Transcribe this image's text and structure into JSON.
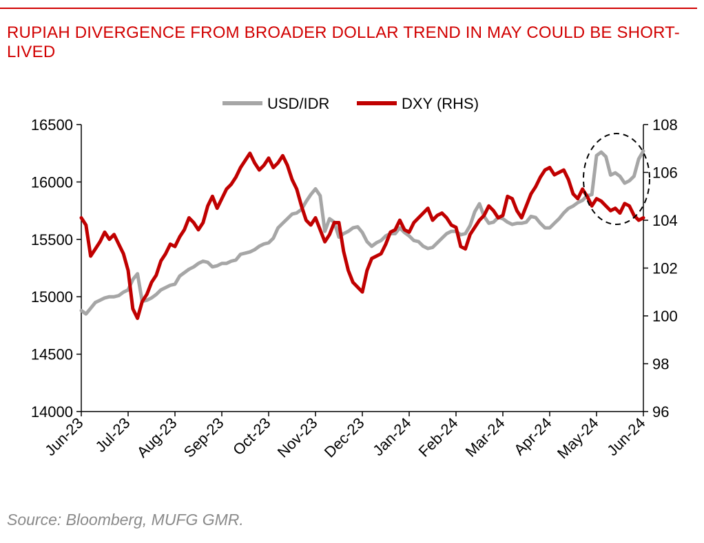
{
  "title": "RUPIAH DIVERGENCE FROM BROADER DOLLAR TREND IN MAY COULD BE SHORT-LIVED",
  "source": "Source: Bloomberg, MUFG GMR.",
  "colors": {
    "accent": "#d10000",
    "usd_idr": "#a6a6a6",
    "dxy": "#c00000"
  },
  "chart_data": {
    "type": "line",
    "legend_position": "top-center",
    "grid": false,
    "x_ticks": [
      "Jun-23",
      "Jul-23",
      "Aug-23",
      "Sep-23",
      "Oct-23",
      "Nov-23",
      "Dec-23",
      "Jan-24",
      "Feb-24",
      "Mar-24",
      "Apr-24",
      "May-24",
      "Jun-24"
    ],
    "y_left": {
      "min": 14000,
      "max": 16500,
      "ticks": [
        "14000",
        "14500",
        "15000",
        "15500",
        "16000",
        "16500"
      ]
    },
    "y_right": {
      "min": 96,
      "max": 108,
      "ticks": [
        "96",
        "98",
        "100",
        "102",
        "104",
        "106",
        "108"
      ]
    },
    "annotation": "dashed ellipse highlighting May-24 divergence",
    "series": [
      {
        "name": "USD/IDR",
        "axis": "left",
        "color": "#a6a6a6",
        "x": [
          0,
          0.1,
          0.2,
          0.3,
          0.4,
          0.5,
          0.6,
          0.7,
          0.8,
          0.9,
          1.0,
          1.1,
          1.2,
          1.3,
          1.4,
          1.5,
          1.6,
          1.7,
          1.8,
          1.9,
          2.0,
          2.1,
          2.2,
          2.3,
          2.4,
          2.5,
          2.6,
          2.7,
          2.8,
          2.9,
          3.0,
          3.1,
          3.2,
          3.3,
          3.4,
          3.5,
          3.6,
          3.7,
          3.8,
          3.9,
          4.0,
          4.1,
          4.2,
          4.3,
          4.4,
          4.5,
          4.6,
          4.7,
          4.8,
          4.9,
          5.0,
          5.1,
          5.2,
          5.3,
          5.4,
          5.5,
          5.6,
          5.7,
          5.8,
          5.9,
          6.0,
          6.1,
          6.2,
          6.3,
          6.4,
          6.5,
          6.6,
          6.7,
          6.8,
          6.9,
          7.0,
          7.1,
          7.2,
          7.3,
          7.4,
          7.5,
          7.6,
          7.7,
          7.8,
          7.9,
          8.0,
          8.1,
          8.2,
          8.3,
          8.4,
          8.5,
          8.6,
          8.7,
          8.8,
          8.9,
          9.0,
          9.1,
          9.2,
          9.3,
          9.4,
          9.5,
          9.6,
          9.7,
          9.8,
          9.9,
          10.0,
          10.1,
          10.2,
          10.3,
          10.4,
          10.5,
          10.6,
          10.7,
          10.8,
          10.9,
          11.0,
          11.1,
          11.2,
          11.3,
          11.4,
          11.5,
          11.6,
          11.7,
          11.8,
          11.9,
          12.0
        ],
        "values": [
          14880,
          14850,
          14900,
          14950,
          14970,
          14990,
          15000,
          15000,
          15010,
          15040,
          15060,
          15150,
          15200,
          14960,
          14970,
          14990,
          15020,
          15060,
          15080,
          15100,
          15110,
          15180,
          15210,
          15240,
          15260,
          15290,
          15310,
          15300,
          15260,
          15270,
          15290,
          15290,
          15310,
          15320,
          15370,
          15380,
          15390,
          15410,
          15440,
          15460,
          15470,
          15510,
          15600,
          15640,
          15680,
          15720,
          15730,
          15760,
          15830,
          15890,
          15940,
          15880,
          15570,
          15680,
          15650,
          15520,
          15550,
          15570,
          15600,
          15610,
          15560,
          15480,
          15440,
          15470,
          15490,
          15530,
          15550,
          15550,
          15600,
          15560,
          15530,
          15490,
          15480,
          15440,
          15420,
          15430,
          15470,
          15510,
          15550,
          15570,
          15570,
          15540,
          15550,
          15620,
          15740,
          15810,
          15700,
          15640,
          15650,
          15690,
          15680,
          15650,
          15630,
          15640,
          15640,
          15650,
          15700,
          15690,
          15640,
          15600,
          15600,
          15640,
          15680,
          15730,
          15770,
          15790,
          15820,
          15840,
          15880,
          15890,
          16230,
          16260,
          16220,
          16060,
          16080,
          16050,
          15990,
          16010,
          16050,
          16200,
          16270
        ]
      },
      {
        "name": "DXY (RHS)",
        "axis": "right",
        "color": "#c00000",
        "x": [
          0,
          0.1,
          0.2,
          0.3,
          0.4,
          0.5,
          0.6,
          0.7,
          0.8,
          0.9,
          1.0,
          1.1,
          1.2,
          1.3,
          1.4,
          1.5,
          1.6,
          1.7,
          1.8,
          1.9,
          2.0,
          2.1,
          2.2,
          2.3,
          2.4,
          2.5,
          2.6,
          2.7,
          2.8,
          2.9,
          3.0,
          3.1,
          3.2,
          3.3,
          3.4,
          3.5,
          3.6,
          3.7,
          3.8,
          3.9,
          4.0,
          4.1,
          4.2,
          4.3,
          4.4,
          4.5,
          4.6,
          4.7,
          4.8,
          4.9,
          5.0,
          5.1,
          5.2,
          5.3,
          5.4,
          5.5,
          5.6,
          5.7,
          5.8,
          5.9,
          6.0,
          6.1,
          6.2,
          6.3,
          6.4,
          6.5,
          6.6,
          6.7,
          6.8,
          6.9,
          7.0,
          7.1,
          7.2,
          7.3,
          7.4,
          7.5,
          7.6,
          7.7,
          7.8,
          7.9,
          8.0,
          8.1,
          8.2,
          8.3,
          8.4,
          8.5,
          8.6,
          8.7,
          8.8,
          8.9,
          9.0,
          9.1,
          9.2,
          9.3,
          9.4,
          9.5,
          9.6,
          9.7,
          9.8,
          9.9,
          10.0,
          10.1,
          10.2,
          10.3,
          10.4,
          10.5,
          10.6,
          10.7,
          10.8,
          10.9,
          11.0,
          11.1,
          11.2,
          11.3,
          11.4,
          11.5,
          11.6,
          11.7,
          11.8,
          11.9,
          12.0
        ],
        "values": [
          104.1,
          103.8,
          102.5,
          102.8,
          103.1,
          103.5,
          103.2,
          103.4,
          103.0,
          102.6,
          101.9,
          100.3,
          99.9,
          100.6,
          100.9,
          101.4,
          101.7,
          102.3,
          102.6,
          103.0,
          102.9,
          103.3,
          103.6,
          104.1,
          103.9,
          103.6,
          103.9,
          104.6,
          105.0,
          104.5,
          104.9,
          105.3,
          105.5,
          105.8,
          106.2,
          106.5,
          106.8,
          106.4,
          106.1,
          106.3,
          106.6,
          106.2,
          106.4,
          106.7,
          106.3,
          105.7,
          105.3,
          104.6,
          104.0,
          103.8,
          104.1,
          103.6,
          103.1,
          103.4,
          103.9,
          103.9,
          102.7,
          101.9,
          101.4,
          101.2,
          101.0,
          101.9,
          102.4,
          102.5,
          102.6,
          103.0,
          103.5,
          103.6,
          104.0,
          103.6,
          103.5,
          103.9,
          104.1,
          104.3,
          104.5,
          104.0,
          104.2,
          104.3,
          104.1,
          103.8,
          103.7,
          102.9,
          102.8,
          103.4,
          103.7,
          104.0,
          104.2,
          104.6,
          104.4,
          104.1,
          104.2,
          105.0,
          104.9,
          104.4,
          104.1,
          104.6,
          105.1,
          105.4,
          105.8,
          106.1,
          106.2,
          105.9,
          106.0,
          106.1,
          105.7,
          105.1,
          104.9,
          105.3,
          105.0,
          104.6,
          104.9,
          104.8,
          104.6,
          104.4,
          104.5,
          104.3,
          104.7,
          104.6,
          104.2,
          104.0,
          104.1
        ]
      }
    ],
    "legend": [
      "USD/IDR",
      "DXY (RHS)"
    ]
  }
}
